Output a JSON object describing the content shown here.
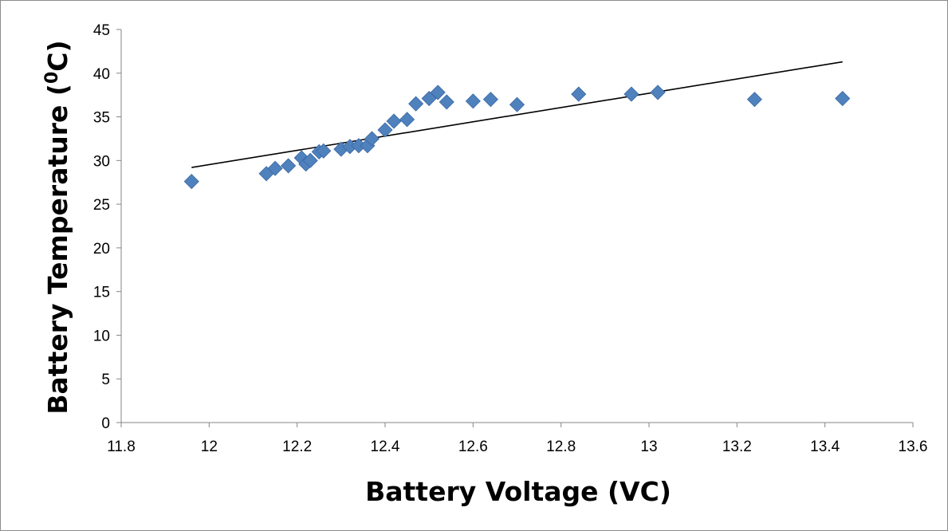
{
  "chart_data": {
    "type": "scatter",
    "title": "",
    "xlabel": "Battery Voltage (VC)",
    "ylabel": {
      "prefix": "Battery Temperature (",
      "sup": "0",
      "suffix": "C)"
    },
    "xlim": [
      11.8,
      13.6
    ],
    "ylim": [
      0,
      45
    ],
    "x_ticks": [
      "11.8",
      "12",
      "12.2",
      "12.4",
      "12.6",
      "12.8",
      "13",
      "13.2",
      "13.4",
      "13.6"
    ],
    "y_ticks": [
      "0",
      "5",
      "10",
      "15",
      "20",
      "25",
      "30",
      "35",
      "40",
      "45"
    ],
    "grid": false,
    "legend": "none",
    "marker": "diamond",
    "marker_color": "#4f81bd",
    "trendline": {
      "type": "linear",
      "color": "#000000",
      "x": [
        11.96,
        13.44
      ],
      "y": [
        29.2,
        41.3
      ]
    },
    "points": [
      {
        "x": 11.96,
        "y": 27.6
      },
      {
        "x": 12.13,
        "y": 28.5
      },
      {
        "x": 12.15,
        "y": 29.1
      },
      {
        "x": 12.18,
        "y": 29.4
      },
      {
        "x": 12.21,
        "y": 30.3
      },
      {
        "x": 12.22,
        "y": 29.6
      },
      {
        "x": 12.23,
        "y": 30.0
      },
      {
        "x": 12.25,
        "y": 31.0
      },
      {
        "x": 12.26,
        "y": 31.1
      },
      {
        "x": 12.3,
        "y": 31.3
      },
      {
        "x": 12.32,
        "y": 31.6
      },
      {
        "x": 12.34,
        "y": 31.7
      },
      {
        "x": 12.36,
        "y": 31.7
      },
      {
        "x": 12.37,
        "y": 32.5
      },
      {
        "x": 12.4,
        "y": 33.5
      },
      {
        "x": 12.42,
        "y": 34.5
      },
      {
        "x": 12.45,
        "y": 34.7
      },
      {
        "x": 12.47,
        "y": 36.5
      },
      {
        "x": 12.5,
        "y": 37.1
      },
      {
        "x": 12.52,
        "y": 37.8
      },
      {
        "x": 12.54,
        "y": 36.7
      },
      {
        "x": 12.6,
        "y": 36.8
      },
      {
        "x": 12.64,
        "y": 37.0
      },
      {
        "x": 12.7,
        "y": 36.4
      },
      {
        "x": 12.84,
        "y": 37.6
      },
      {
        "x": 12.96,
        "y": 37.6
      },
      {
        "x": 13.02,
        "y": 37.8
      },
      {
        "x": 13.24,
        "y": 37.0
      },
      {
        "x": 13.44,
        "y": 37.1
      }
    ]
  }
}
